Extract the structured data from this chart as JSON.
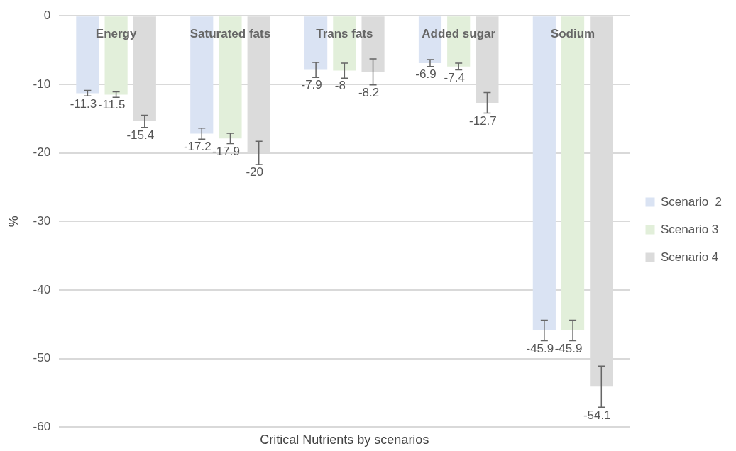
{
  "chart_data": {
    "type": "bar",
    "xlabel": "Critical Nutrients by scenarios",
    "ylabel": "%",
    "categories": [
      "Energy",
      "Saturated fats",
      "Trans fats",
      "Added sugar",
      "Sodium"
    ],
    "series": [
      {
        "name": "Scenario  2",
        "color": "#dae3f3",
        "values": [
          -11.3,
          -17.2,
          -7.9,
          -6.9,
          -45.9
        ],
        "errors": [
          0.4,
          0.8,
          1.1,
          0.5,
          1.5
        ]
      },
      {
        "name": "Scenario 3",
        "color": "#e2efda",
        "values": [
          -11.5,
          -17.9,
          -8,
          -7.4,
          -45.9
        ],
        "errors": [
          0.4,
          0.75,
          1.1,
          0.5,
          1.5
        ]
      },
      {
        "name": "Scenario 4",
        "color": "#dbdbdb",
        "values": [
          -15.4,
          -20,
          -8.2,
          -12.7,
          -54.1
        ],
        "errors": [
          0.9,
          1.7,
          1.9,
          1.5,
          3
        ]
      }
    ],
    "ylim": [
      -60,
      0
    ],
    "yticks": [
      -60,
      -50,
      -40,
      -30,
      -20,
      -10,
      0
    ],
    "grid": "y",
    "legend": "right",
    "data_labels": true
  }
}
